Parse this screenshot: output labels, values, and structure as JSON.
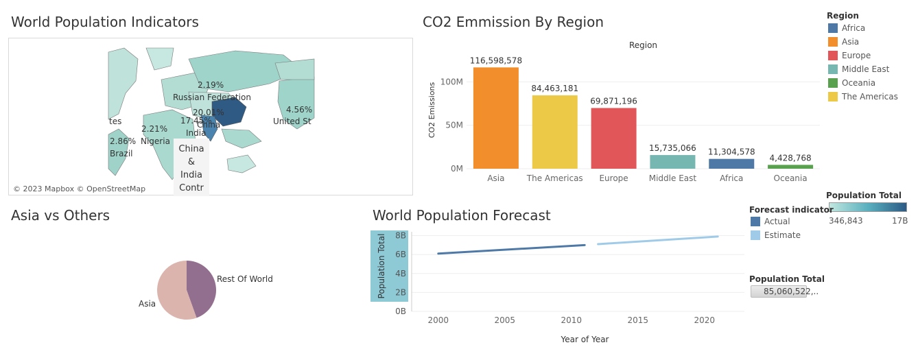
{
  "titles": {
    "map": "World Population Indicators",
    "co2": "CO2 Emmission By Region",
    "pie": "Asia vs Others",
    "forecast": "World Population Forecast"
  },
  "map": {
    "attribution": "© 2023 Mapbox © OpenStreetMap",
    "labels": {
      "russia_pct": "2.19%",
      "russia": "Russian Federation",
      "china_pct": "20.01%",
      "india_pct": "17.45%",
      "china": "China",
      "india": "India",
      "us_pct": "4.56%",
      "us": "United St",
      "us_left": "tes",
      "nigeria_pct": "2.21%",
      "nigeria": "Nigeria",
      "brazil_pct": "2.86%",
      "brazil": "Brazil",
      "tooltip": [
        "China",
        "&",
        "India",
        "Contr"
      ]
    }
  },
  "region_legend": {
    "title": "Region",
    "items": [
      {
        "label": "Africa",
        "color": "#4e79a7"
      },
      {
        "label": "Asia",
        "color": "#f28e2b"
      },
      {
        "label": "Europe",
        "color": "#e15759"
      },
      {
        "label": "Middle East",
        "color": "#76b7b2"
      },
      {
        "label": "Oceania",
        "color": "#59a14f"
      },
      {
        "label": "The Americas",
        "color": "#edc948"
      }
    ]
  },
  "forecast_legend": {
    "title": "Forecast indicator",
    "items": [
      {
        "label": "Actual",
        "color": "#4e79a7"
      },
      {
        "label": "Estimate",
        "color": "#a0cbe8"
      }
    ]
  },
  "population_legend": {
    "title": "Population Total",
    "min": "346,843",
    "max": "17B"
  },
  "population_total": {
    "title": "Population Total",
    "value": "85,060,522,.."
  },
  "chart_data": [
    {
      "type": "bar",
      "title": "Region",
      "ylabel": "CO2 Emissions",
      "categories": [
        "Asia",
        "The Americas",
        "Europe",
        "Middle East",
        "Africa",
        "Oceania"
      ],
      "values": [
        116598578,
        84463181,
        69871196,
        15735066,
        11304578,
        4428768
      ],
      "value_labels": [
        "116,598,578",
        "84,463,181",
        "69,871,196",
        "15,735,066",
        "11,304,578",
        "4,428,768"
      ],
      "colors": [
        "#f28e2b",
        "#edc948",
        "#e15759",
        "#76b7b2",
        "#4e79a7",
        "#59a14f"
      ],
      "yticks": [
        {
          "value": 0,
          "label": "0M"
        },
        {
          "value": 50000000,
          "label": "50M"
        },
        {
          "value": 100000000,
          "label": "100M"
        }
      ],
      "ylim": [
        0,
        135000000
      ]
    },
    {
      "type": "pie",
      "labels": [
        "Asia",
        "Rest Of World"
      ],
      "values": [
        55.5,
        44.5
      ],
      "colors": [
        "#dbb5ad",
        "#936f8f"
      ]
    },
    {
      "type": "line",
      "xlabel": "Year of Year",
      "ylabel": "Population Total",
      "xticks": [
        2000,
        2005,
        2010,
        2015,
        2020
      ],
      "yticks": [
        {
          "value": 0,
          "label": "0B"
        },
        {
          "value": 2,
          "label": "2B"
        },
        {
          "value": 4,
          "label": "4B"
        },
        {
          "value": 6,
          "label": "6B"
        },
        {
          "value": 8,
          "label": "8B"
        }
      ],
      "xlim": [
        1998,
        2023
      ],
      "ylim": [
        0,
        8.4
      ],
      "series": [
        {
          "name": "Actual",
          "color": "#4e79a7",
          "x": [
            2000,
            2011
          ],
          "y": [
            6.1,
            7.0
          ]
        },
        {
          "name": "Estimate",
          "color": "#a0cbe8",
          "x": [
            2012,
            2021
          ],
          "y": [
            7.1,
            7.9
          ]
        }
      ]
    }
  ]
}
